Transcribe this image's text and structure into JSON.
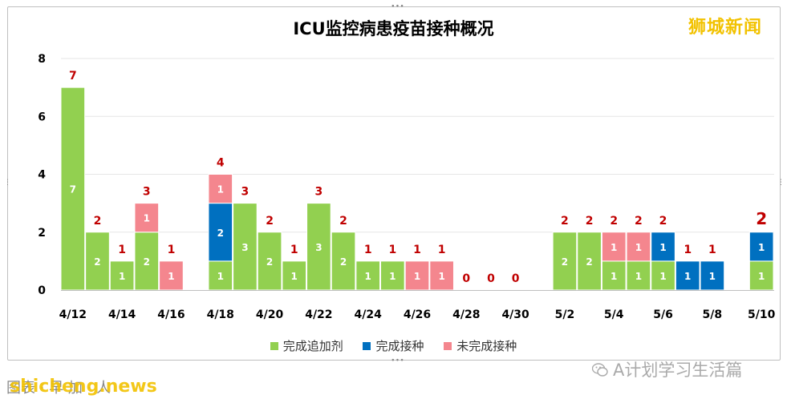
{
  "chart_data": {
    "type": "bar",
    "title": "ICU监控病患疫苗接种概况",
    "x": [
      "4/12",
      "4/13",
      "4/14",
      "4/15",
      "4/16",
      "4/17",
      "4/18",
      "4/19",
      "4/20",
      "4/21",
      "4/22",
      "4/23",
      "4/24",
      "4/25",
      "4/26",
      "4/27",
      "4/28",
      "4/29",
      "4/30",
      "5/1",
      "5/2",
      "5/3",
      "5/4",
      "5/5",
      "5/6",
      "5/7",
      "5/8",
      "5/9",
      "5/10"
    ],
    "x_tick_labels": [
      "4/12",
      "4/14",
      "4/16",
      "4/18",
      "4/20",
      "4/22",
      "4/24",
      "4/26",
      "4/28",
      "4/30",
      "5/2",
      "5/4",
      "5/6",
      "5/8",
      "5/10"
    ],
    "stacked": true,
    "series": [
      {
        "name": "完成追加剂",
        "color": "#92d050",
        "values": [
          7,
          2,
          1,
          2,
          0,
          0,
          1,
          3,
          2,
          1,
          3,
          2,
          1,
          1,
          0,
          0,
          0,
          0,
          0,
          0,
          2,
          2,
          1,
          1,
          1,
          0,
          0,
          0,
          1
        ]
      },
      {
        "name": "完成接种",
        "color": "#0070c0",
        "values": [
          0,
          0,
          0,
          0,
          0,
          0,
          2,
          0,
          0,
          0,
          0,
          0,
          0,
          0,
          0,
          0,
          0,
          0,
          0,
          0,
          0,
          0,
          0,
          0,
          1,
          1,
          1,
          0,
          1
        ]
      },
      {
        "name": "未完成接种",
        "color": "#f4868e",
        "values": [
          0,
          0,
          0,
          1,
          1,
          0,
          1,
          0,
          0,
          0,
          0,
          0,
          0,
          0,
          1,
          1,
          0,
          0,
          0,
          0,
          0,
          0,
          1,
          1,
          0,
          0,
          0,
          0,
          0
        ]
      }
    ],
    "totals": [
      7,
      2,
      1,
      3,
      1,
      null,
      4,
      3,
      2,
      1,
      3,
      2,
      1,
      1,
      1,
      1,
      0,
      0,
      0,
      null,
      2,
      2,
      2,
      2,
      2,
      1,
      1,
      null,
      2
    ],
    "ylim": [
      0,
      8
    ],
    "yticks": [
      0,
      2,
      4,
      6,
      8
    ],
    "grid": true,
    "legend_position": "bottom"
  },
  "ui": {
    "brand": "狮城新闻",
    "watermark_left": "shicheng.news",
    "footer_partial": "图表 · 早 加 · 人",
    "watermark_right": "A计划学习生活篇",
    "wechat_icon": "wechat-icon",
    "colors": {
      "total_label": "#c00000",
      "axis": "#000000",
      "grid": "#e6e6e6"
    }
  }
}
